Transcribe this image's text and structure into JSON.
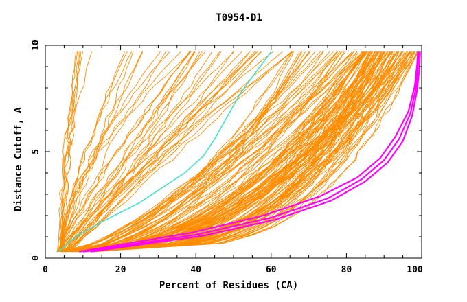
{
  "chart_data": {
    "type": "line",
    "title": "T0954-D1",
    "xlabel": "Percent of Residues (CA)",
    "ylabel": "Distance Cutoff, A",
    "xlim": [
      0,
      100
    ],
    "ylim": [
      0,
      10
    ],
    "xticks": [
      0,
      20,
      40,
      60,
      80,
      100
    ],
    "yticks": [
      0,
      5,
      10
    ],
    "x_tick_labels": [
      "0",
      "20",
      "40",
      "60",
      "80",
      "100"
    ],
    "y_tick_labels": [
      "0",
      "5",
      "10"
    ],
    "colors": {
      "background": "#ffffff",
      "frame": "#000000",
      "model": "#ff8c00",
      "highlight_cyan": "#40e0d0",
      "highlight_magenta": "#ff00ff"
    },
    "series": [
      {
        "name": "cyan-model",
        "color": "#40e0d0",
        "x": [
          3.5,
          8,
          15,
          25,
          37,
          42,
          45,
          52,
          60
        ],
        "y": [
          0.3,
          1.0,
          1.7,
          2.6,
          4.0,
          4.8,
          5.6,
          7.8,
          9.7
        ]
      },
      {
        "name": "magenta-model-1",
        "color": "#ff00ff",
        "x": [
          10,
          20,
          40,
          60,
          75,
          84,
          90,
          94,
          97,
          98.5,
          99,
          99.2
        ],
        "y": [
          0.3,
          0.55,
          1.1,
          1.9,
          2.8,
          3.7,
          4.6,
          5.6,
          6.8,
          8.0,
          9.0,
          9.7
        ]
      },
      {
        "name": "magenta-model-2",
        "color": "#ff00ff",
        "x": [
          12,
          22,
          42,
          61,
          76,
          85,
          91,
          95,
          97.5,
          98.8,
          99.4,
          99.6
        ],
        "y": [
          0.3,
          0.55,
          1.05,
          1.8,
          2.7,
          3.6,
          4.5,
          5.5,
          6.7,
          7.9,
          8.9,
          9.7
        ]
      },
      {
        "name": "magenta-model-3",
        "color": "#ff00ff",
        "x": [
          9,
          19,
          39,
          58,
          73,
          83,
          89,
          93,
          96.5,
          98.2,
          98.8,
          99
        ],
        "y": [
          0.3,
          0.6,
          1.2,
          2.0,
          2.9,
          3.8,
          4.7,
          5.7,
          6.9,
          8.1,
          9.1,
          9.7
        ]
      }
    ]
  }
}
